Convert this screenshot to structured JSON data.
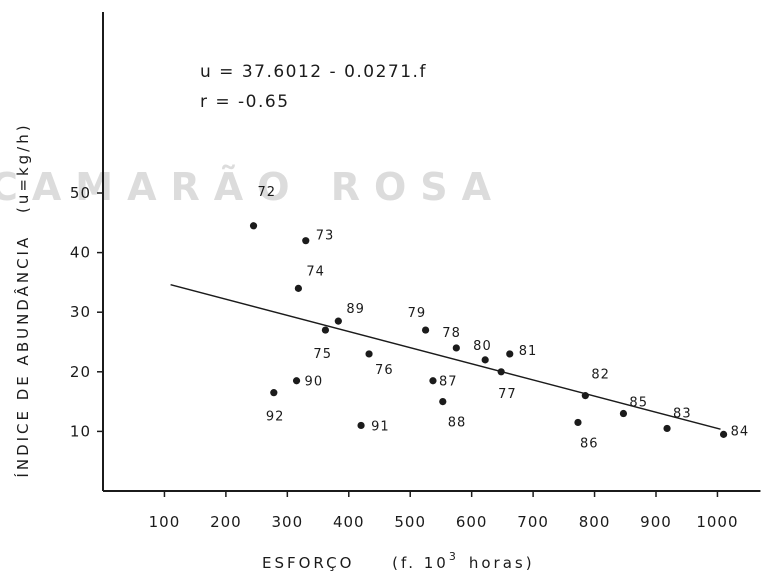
{
  "chart_data": {
    "type": "scatter",
    "title": "",
    "xlabel": "ESFORÇO",
    "xlabel_unit": "(f. 10",
    "xlabel_unit_sup": "3",
    "xlabel_unit_end": "horas)",
    "ylabel": "ÍNDICE DE ABUNDÂNCIA",
    "ylabel_unit": "(u=kg/h)",
    "xlim": [
      0,
      1070
    ],
    "ylim": [
      0,
      70
    ],
    "xticks": [
      100,
      200,
      300,
      400,
      500,
      600,
      700,
      800,
      900,
      1000
    ],
    "yticks": [
      10,
      20,
      30,
      40,
      50
    ],
    "grid": false,
    "equation": "u = 37.6012 - 0.0271.f",
    "correlation": "r =  -0.65",
    "watermark": "CAMARÃO ROSA",
    "regression": {
      "intercept": 37.6012,
      "slope": -0.0271,
      "x_range": [
        110,
        1005
      ]
    },
    "points": [
      {
        "label": "72",
        "x": 245,
        "y": 44.5
      },
      {
        "label": "73",
        "x": 330,
        "y": 42
      },
      {
        "label": "74",
        "x": 318,
        "y": 34
      },
      {
        "label": "75",
        "x": 362,
        "y": 27
      },
      {
        "label": "89",
        "x": 383,
        "y": 28.5
      },
      {
        "label": "76",
        "x": 433,
        "y": 23
      },
      {
        "label": "90",
        "x": 315,
        "y": 18.5
      },
      {
        "label": "92",
        "x": 278,
        "y": 16.5
      },
      {
        "label": "91",
        "x": 420,
        "y": 11
      },
      {
        "label": "79",
        "x": 525,
        "y": 27
      },
      {
        "label": "78",
        "x": 575,
        "y": 24
      },
      {
        "label": "87",
        "x": 537,
        "y": 18.5
      },
      {
        "label": "88",
        "x": 553,
        "y": 15
      },
      {
        "label": "80",
        "x": 622,
        "y": 22
      },
      {
        "label": "81",
        "x": 662,
        "y": 23
      },
      {
        "label": "77",
        "x": 648,
        "y": 20
      },
      {
        "label": "82",
        "x": 785,
        "y": 16
      },
      {
        "label": "86",
        "x": 773,
        "y": 11.5
      },
      {
        "label": "85",
        "x": 847,
        "y": 13
      },
      {
        "label": "83",
        "x": 918,
        "y": 10.5
      },
      {
        "label": "84",
        "x": 1010,
        "y": 9.5
      }
    ]
  }
}
